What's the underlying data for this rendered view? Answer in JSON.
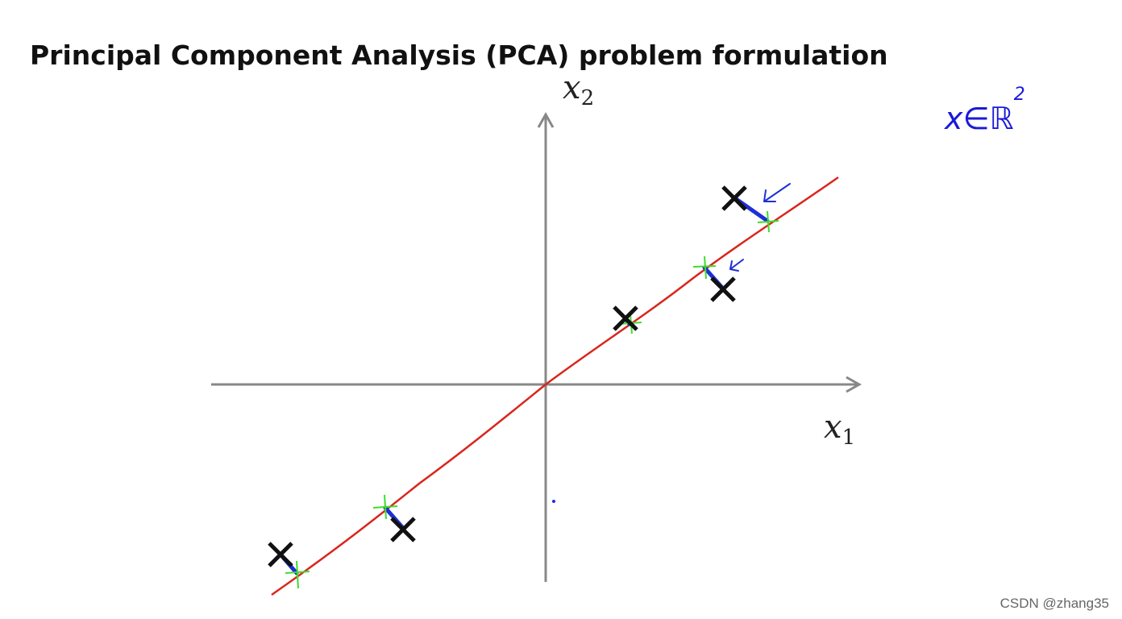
{
  "header": {
    "title": "Principal Component Analysis (PCA) problem formulation"
  },
  "axes": {
    "x_label": {
      "base": "x",
      "subscript": "1"
    },
    "y_label": {
      "base": "x",
      "subscript": "2"
    }
  },
  "annotation": {
    "base": "x∈ℝ",
    "superscript": "2"
  },
  "watermark": "CSDN @zhang35"
}
